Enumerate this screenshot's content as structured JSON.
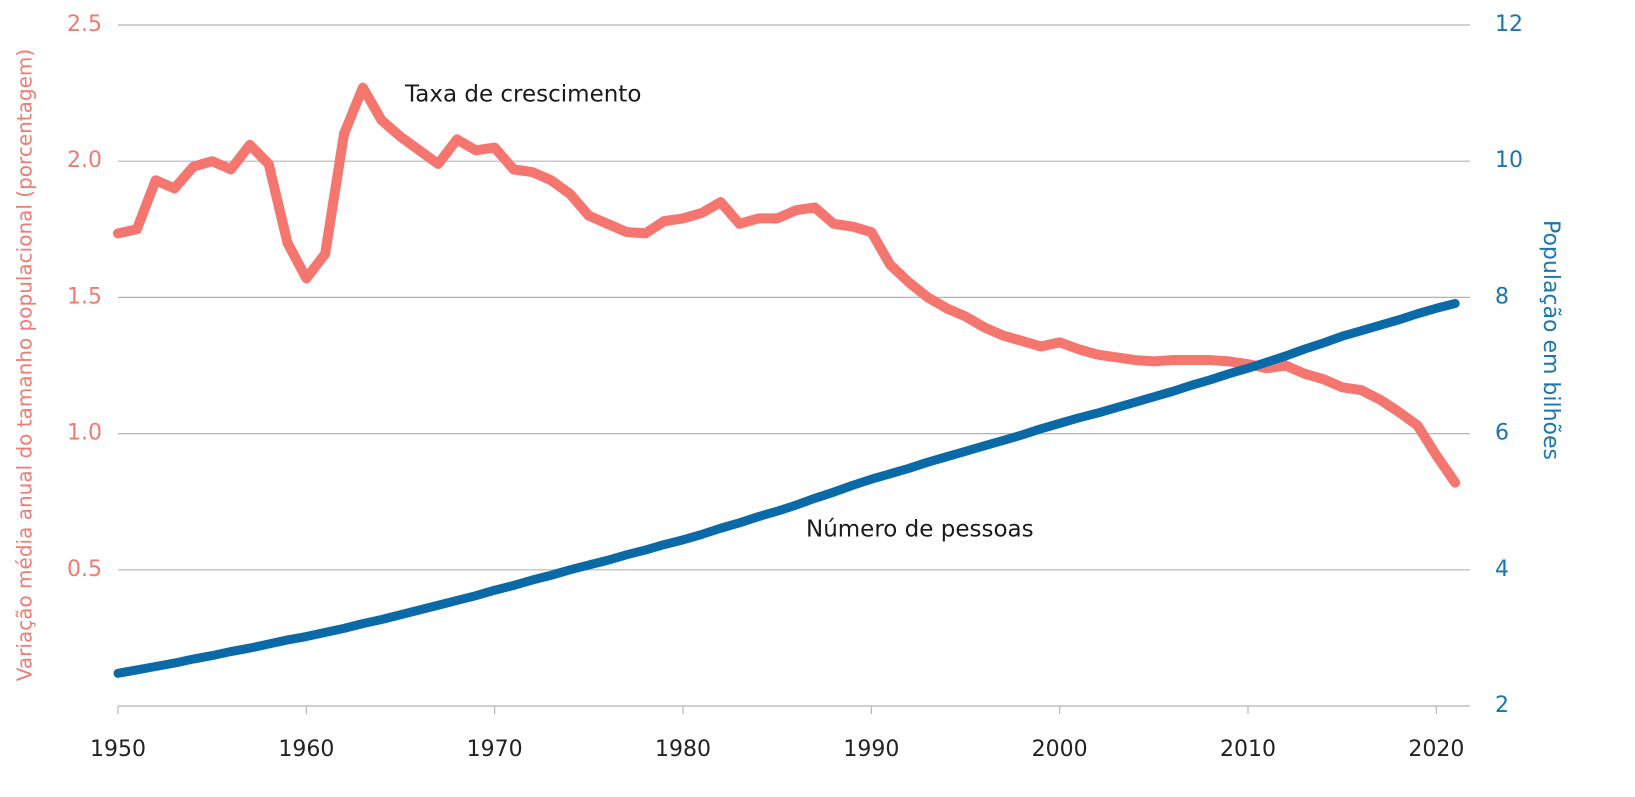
{
  "chart_data": {
    "type": "line",
    "annotations": [
      "Taxa de crescimento",
      "Número de pessoas"
    ],
    "y_label": "Variação média anual do tamanho populacional (porcentagem)",
    "y2_label": "População em bilhões",
    "x": [
      1950,
      1951,
      1952,
      1953,
      1954,
      1955,
      1956,
      1957,
      1958,
      1959,
      1960,
      1961,
      1962,
      1963,
      1964,
      1965,
      1966,
      1967,
      1968,
      1969,
      1970,
      1971,
      1972,
      1973,
      1974,
      1975,
      1976,
      1977,
      1978,
      1979,
      1980,
      1981,
      1982,
      1983,
      1984,
      1985,
      1986,
      1987,
      1988,
      1989,
      1990,
      1991,
      1992,
      1993,
      1994,
      1995,
      1996,
      1997,
      1998,
      1999,
      2000,
      2001,
      2002,
      2003,
      2004,
      2005,
      2006,
      2007,
      2008,
      2009,
      2010,
      2011,
      2012,
      2013,
      2014,
      2015,
      2016,
      2017,
      2018,
      2019,
      2020,
      2021
    ],
    "xlim": [
      1950,
      2022
    ],
    "xticks": [
      1950,
      1960,
      1970,
      1980,
      1990,
      2000,
      2010,
      2020
    ],
    "ylim": [
      0,
      2.5
    ],
    "yticks": [
      0.5,
      {
        "value": 1,
        "label": "1.0"
      },
      1.5,
      {
        "value": 2,
        "label": "2.0"
      },
      2.5
    ],
    "y2lim": [
      2,
      12
    ],
    "y2ticks": [
      2,
      4,
      6,
      8,
      10,
      12
    ],
    "grid": true,
    "series": [
      {
        "name": "Taxa de crescimento",
        "color": "#f4766f",
        "axis": "y",
        "values": [
          1.735,
          1.75,
          1.93,
          1.9,
          1.98,
          2.0,
          1.97,
          2.06,
          1.99,
          1.7,
          1.57,
          1.66,
          2.1,
          2.27,
          2.15,
          2.09,
          2.04,
          1.99,
          2.08,
          2.04,
          2.05,
          1.97,
          1.96,
          1.93,
          1.88,
          1.8,
          1.77,
          1.74,
          1.735,
          1.78,
          1.79,
          1.81,
          1.85,
          1.77,
          1.79,
          1.79,
          1.82,
          1.83,
          1.77,
          1.76,
          1.74,
          1.62,
          1.555,
          1.5,
          1.46,
          1.43,
          1.39,
          1.36,
          1.34,
          1.32,
          1.335,
          1.31,
          1.29,
          1.28,
          1.27,
          1.265,
          1.27,
          1.27,
          1.27,
          1.265,
          1.255,
          1.24,
          1.25,
          1.22,
          1.2,
          1.17,
          1.16,
          1.125,
          1.08,
          1.03,
          0.92,
          0.82
        ]
      },
      {
        "name": "Número de pessoas",
        "color": "#0a6aa8",
        "axis": "y2",
        "values": [
          2.48,
          2.53,
          2.58,
          2.63,
          2.69,
          2.74,
          2.8,
          2.85,
          2.91,
          2.97,
          3.02,
          3.08,
          3.14,
          3.21,
          3.27,
          3.34,
          3.41,
          3.48,
          3.55,
          3.62,
          3.7,
          3.77,
          3.85,
          3.92,
          4.0,
          4.07,
          4.14,
          4.22,
          4.29,
          4.37,
          4.44,
          4.52,
          4.61,
          4.69,
          4.78,
          4.86,
          4.95,
          5.05,
          5.14,
          5.24,
          5.33,
          5.41,
          5.49,
          5.58,
          5.66,
          5.74,
          5.82,
          5.9,
          5.98,
          6.07,
          6.15,
          6.23,
          6.3,
          6.38,
          6.46,
          6.54,
          6.62,
          6.71,
          6.79,
          6.88,
          6.96,
          7.05,
          7.14,
          7.24,
          7.33,
          7.43,
          7.51,
          7.59,
          7.67,
          7.76,
          7.84,
          7.91
        ]
      }
    ]
  }
}
